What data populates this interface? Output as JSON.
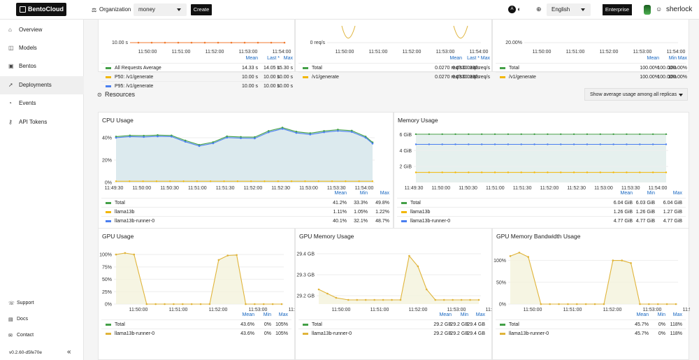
{
  "header": {
    "logo": "BentoCloud",
    "org_label": "Organization",
    "org_value": "money",
    "create_label": "Create",
    "language": "English",
    "enterprise_label": "Enterprise",
    "username": "sherlock"
  },
  "sidebar": {
    "items": [
      {
        "label": "Overview",
        "icon": "home-icon"
      },
      {
        "label": "Models",
        "icon": "cube-icon"
      },
      {
        "label": "Bentos",
        "icon": "box-icon"
      },
      {
        "label": "Deployments",
        "icon": "rocket-icon"
      },
      {
        "label": "Events",
        "icon": "bell-icon"
      },
      {
        "label": "API Tokens",
        "icon": "key-icon"
      }
    ],
    "footer": [
      {
        "label": "Support",
        "icon": "support-icon"
      },
      {
        "label": "Docs",
        "icon": "docs-icon"
      },
      {
        "label": "Contact",
        "icon": "contact-icon"
      }
    ],
    "version": "v0.2.60-d5fe70e"
  },
  "resources": {
    "title": "Resources",
    "usage_toggle": "Show average usage among all replicas"
  },
  "top_panels": [
    {
      "yticks": [
        "10.00 s"
      ],
      "xticks": [
        "11:50:00",
        "11:51:00",
        "11:52:00",
        "11:53:00",
        "11:54:00"
      ],
      "headers": [
        "Mean",
        "Last *",
        "Max"
      ],
      "rows": [
        {
          "name": "All Requests Average",
          "color": "#43a047",
          "values": [
            "14.33 s",
            "14.05 s",
            "15.30 s"
          ]
        },
        {
          "name": "P50: /v1/generate",
          "color": "#f2b705",
          "values": [
            "10.00 s",
            "10.00 s",
            "10.00 s"
          ]
        },
        {
          "name": "P95: /v1/generate",
          "color": "#4a7ff0",
          "values": [
            "10.00 s",
            "10.00 s",
            "10.00 s"
          ]
        }
      ]
    },
    {
      "yticks": [
        "0 req/s"
      ],
      "xticks": [
        "11:50:00",
        "11:51:00",
        "11:52:00",
        "11:53:00",
        "11:54:00"
      ],
      "headers": [
        "Mean",
        "Last *",
        "Max"
      ],
      "rows": [
        {
          "name": "Total",
          "color": "#43a047",
          "values": [
            "0.0270 req/s",
            "0.0330 req/s",
            "0.0330 req/s"
          ]
        },
        {
          "name": "/v1/generate",
          "color": "#f2b705",
          "values": [
            "0.0270 req/s",
            "0.0330 req/s",
            "0.0330 req/s"
          ]
        }
      ]
    },
    {
      "yticks": [
        "20.00%"
      ],
      "xticks": [
        "11:50:00",
        "11:51:00",
        "11:52:00",
        "11:53:00",
        "11:54:00"
      ],
      "headers": [
        "Mean",
        "Min",
        "Max"
      ],
      "rows": [
        {
          "name": "Total",
          "color": "#43a047",
          "values": [
            "100.00%",
            "100.00%",
            "100.00%"
          ]
        },
        {
          "name": "/v1/generate",
          "color": "#f2b705",
          "values": [
            "100.00%",
            "100.00%",
            "100.00%"
          ]
        }
      ]
    }
  ],
  "chart_data": [
    {
      "type": "area",
      "title": "CPU Usage",
      "x": [
        "11:49:30",
        "11:50:00",
        "11:50:30",
        "11:51:00",
        "11:51:30",
        "11:52:00",
        "11:52:30",
        "11:53:00",
        "11:53:30",
        "11:54:00"
      ],
      "ytick_labels": [
        "0%",
        "20%",
        "40%"
      ],
      "ylim": [
        0,
        50
      ],
      "headers": [
        "Mean",
        "Min",
        "Max"
      ],
      "series": [
        {
          "name": "Total",
          "color": "#43a047",
          "stats": [
            "41.2%",
            "33.3%",
            "49.8%"
          ],
          "x": [
            0,
            0.5,
            1,
            1.5,
            2,
            2.5,
            3,
            3.5,
            4,
            4.5,
            5,
            5.5,
            6,
            6.5,
            7,
            7.5,
            8,
            8.5,
            9,
            9.25
          ],
          "values": [
            41,
            42,
            41.8,
            42.3,
            42,
            37.5,
            33.6,
            36,
            41.2,
            40.7,
            40.5,
            46,
            49,
            45.4,
            44,
            46,
            47.2,
            46.3,
            41,
            35.8
          ]
        },
        {
          "name": "llama13b",
          "color": "#f2b705",
          "stats": [
            "1.11%",
            "1.05%",
            "1.22%"
          ]
        },
        {
          "name": "llama13b-runner-0",
          "color": "#4a7ff0",
          "stats": [
            "40.1%",
            "32.1%",
            "48.7%"
          ],
          "x": [
            0,
            0.5,
            1,
            1.5,
            2,
            2.5,
            3,
            3.5,
            4,
            4.5,
            5,
            5.5,
            6,
            6.5,
            7,
            7.5,
            8,
            8.5,
            9,
            9.25
          ],
          "values": [
            40,
            41,
            40.7,
            41.2,
            41,
            36.4,
            32.6,
            35,
            40.1,
            39.6,
            39.4,
            44.9,
            48,
            44.3,
            42.9,
            44.9,
            46.1,
            45.2,
            40,
            34.8
          ]
        }
      ]
    },
    {
      "type": "line",
      "title": "Memory Usage",
      "x": [
        "11:49:30",
        "11:50:00",
        "11:50:30",
        "11:51:00",
        "11:51:30",
        "11:52:00",
        "11:52:30",
        "11:53:00",
        "11:53:30",
        "11:54:00"
      ],
      "ytick_labels": [
        "2 GiB",
        "4 GiB",
        "6 GiB"
      ],
      "ylim": [
        0,
        7
      ],
      "headers": [
        "Mean",
        "Min",
        "Max"
      ],
      "series": [
        {
          "name": "Total",
          "color": "#43a047",
          "stats": [
            "6.04 GiB",
            "6.03 GiB",
            "6.04 GiB"
          ],
          "values": [
            6.04,
            6.04,
            6.04,
            6.04,
            6.04,
            6.04,
            6.04,
            6.04,
            6.04,
            6.04
          ]
        },
        {
          "name": "llama13b",
          "color": "#f2b705",
          "stats": [
            "1.26 GiB",
            "1.26 GiB",
            "1.27 GiB"
          ],
          "values": [
            1.26,
            1.26,
            1.26,
            1.26,
            1.26,
            1.26,
            1.26,
            1.26,
            1.26,
            1.26
          ]
        },
        {
          "name": "llama13b-runner-0",
          "color": "#4a7ff0",
          "stats": [
            "4.77 GiB",
            "4.77 GiB",
            "4.77 GiB"
          ],
          "values": [
            4.77,
            4.77,
            4.77,
            4.77,
            4.77,
            4.77,
            4.77,
            4.77,
            4.77,
            4.77
          ]
        }
      ]
    },
    {
      "type": "area",
      "title": "GPU Usage",
      "x": [
        "11:50:00",
        "11:51:00",
        "11:52:00",
        "11:53:00",
        "11:54:00"
      ],
      "ytick_labels": [
        "0%",
        "25%",
        "50%",
        "75%",
        "100%"
      ],
      "ylim": [
        0,
        110
      ],
      "headers": [
        "Mean",
        "Min",
        "Max"
      ],
      "series": [
        {
          "name": "Total",
          "color": "#43a047",
          "stats": [
            "43.6%",
            "0%",
            "105%"
          ]
        },
        {
          "name": "llama13b-runner-0",
          "color": "#e0b43a",
          "stats": [
            "43.6%",
            "0%",
            "105%"
          ],
          "x": [
            -0.6,
            -0.35,
            -0.1,
            0.25,
            0.5,
            0.75,
            1,
            1.25,
            1.5,
            1.75,
            2,
            2.25,
            2.5,
            2.75,
            3,
            3.25,
            3.5,
            3.75,
            4
          ],
          "values": [
            100,
            103,
            100,
            0,
            0,
            0,
            0,
            0,
            0,
            0,
            0,
            89,
            98,
            99,
            0,
            0,
            0,
            0,
            0
          ]
        }
      ]
    },
    {
      "type": "area",
      "title": "GPU Memory Usage",
      "x": [
        "11:50:00",
        "11:51:00",
        "11:52:00",
        "11:53:00",
        "11:54:00"
      ],
      "ytick_labels": [
        "29.2 GB",
        "29.3 GB",
        "29.4 GB"
      ],
      "ylim": [
        29.16,
        29.42
      ],
      "headers": [
        "Mean",
        "Min",
        "Max"
      ],
      "series": [
        {
          "name": "Total",
          "color": "#43a047",
          "stats": [
            "29.2 GB",
            "29.2 GB",
            "29.4 GB"
          ]
        },
        {
          "name": "llama13b-runner-0",
          "color": "#e0b43a",
          "stats": [
            "29.2 GB",
            "29.2 GB",
            "29.4 GB"
          ],
          "x": [
            -0.6,
            -0.35,
            -0.1,
            0.25,
            0.5,
            0.75,
            1,
            1.25,
            1.5,
            1.75,
            2,
            2.25,
            2.5,
            2.75,
            3,
            3.25,
            3.5,
            3.75,
            4
          ],
          "values": [
            29.23,
            29.21,
            29.19,
            29.18,
            29.18,
            29.18,
            29.18,
            29.18,
            29.18,
            29.18,
            29.39,
            29.34,
            29.23,
            29.18,
            29.18,
            29.18,
            29.18,
            29.18,
            29.18
          ]
        }
      ]
    },
    {
      "type": "area",
      "title": "GPU Memory Bandwidth Usage",
      "x": [
        "11:50:00",
        "11:51:00",
        "11:52:00",
        "11:53:00",
        "11:54:00"
      ],
      "ytick_labels": [
        "0%",
        "50%",
        "100%"
      ],
      "ylim": [
        0,
        125
      ],
      "headers": [
        "Mean",
        "Min",
        "Max"
      ],
      "series": [
        {
          "name": "Total",
          "color": "#43a047",
          "stats": [
            "45.7%",
            "0%",
            "118%"
          ]
        },
        {
          "name": "llama13b-runner-0",
          "color": "#e0b43a",
          "stats": [
            "45.7%",
            "0%",
            "118%"
          ],
          "x": [
            -0.6,
            -0.35,
            -0.1,
            0.25,
            0.5,
            0.75,
            1,
            1.25,
            1.5,
            1.75,
            2,
            2.25,
            2.5,
            2.75,
            3,
            3.25,
            3.5,
            3.75,
            4
          ],
          "values": [
            110,
            118,
            108,
            0,
            0,
            0,
            0,
            0,
            0,
            0,
            0,
            100,
            100,
            94,
            0,
            0,
            0,
            0,
            0
          ]
        }
      ]
    }
  ]
}
